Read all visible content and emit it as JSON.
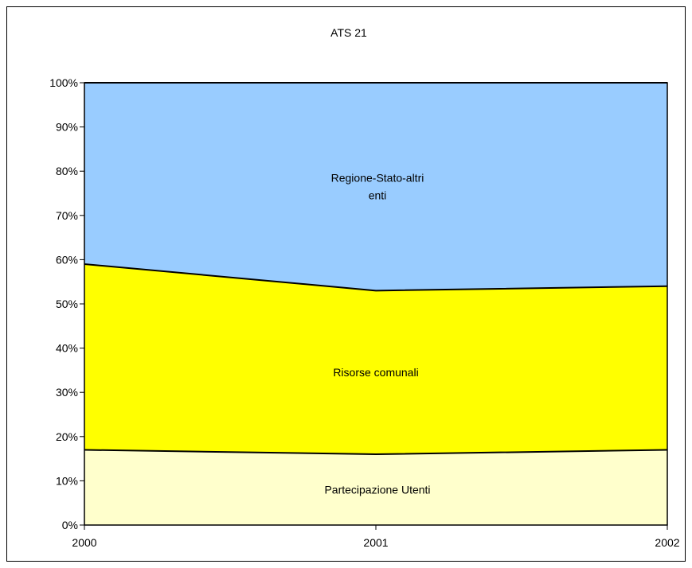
{
  "chart_data": {
    "type": "area",
    "stacked": true,
    "percent": true,
    "title": "ATS 21",
    "categories": [
      "2000",
      "2001",
      "2002"
    ],
    "ylim": [
      0,
      100
    ],
    "yticks": [
      "0%",
      "10%",
      "20%",
      "30%",
      "40%",
      "50%",
      "60%",
      "70%",
      "80%",
      "90%",
      "100%"
    ],
    "grid": false,
    "series": [
      {
        "name": "Partecipazione Utenti",
        "values": [
          17,
          16,
          17
        ],
        "color": "#FFFFCC",
        "label_lines": [
          "Partecipazione Utenti"
        ]
      },
      {
        "name": "Risorse comunali",
        "values": [
          42,
          37,
          37
        ],
        "color": "#FFFF00",
        "label_lines": [
          "Risorse comunali"
        ]
      },
      {
        "name": "Regione-Stato-altri enti",
        "values": [
          41,
          47,
          46
        ],
        "color": "#99CCFF",
        "label_lines": [
          "Regione-Stato-altri",
          "enti"
        ]
      }
    ]
  }
}
